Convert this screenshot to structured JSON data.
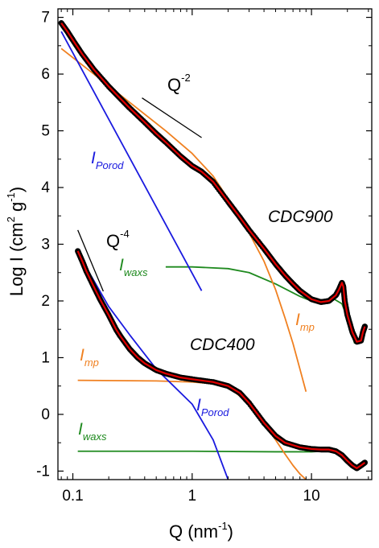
{
  "chart_data": {
    "type": "line",
    "xlabel": {
      "main": "Q (nm",
      "sup": "-1",
      "close": ")"
    },
    "ylabel": {
      "main": "Log I (cm",
      "sup1": "2",
      "mid": " g",
      "sup2": "-1",
      "close": ")"
    },
    "x_scale": "log",
    "xlim": [
      0.075,
      32
    ],
    "ylim": [
      -1.15,
      7.15
    ],
    "x_ticks": [
      0.1,
      1,
      10
    ],
    "x_tick_labels": [
      "0.1",
      "1",
      "10"
    ],
    "y_ticks": [
      -1,
      0,
      1,
      2,
      3,
      4,
      5,
      6,
      7
    ],
    "y_tick_labels": [
      "-1",
      "0",
      "1",
      "2",
      "3",
      "4",
      "5",
      "6",
      "7"
    ],
    "grid": false,
    "colors": {
      "data": "#000000",
      "fit": "#e00000",
      "porod": "#1a1adf",
      "mp": "#f08020",
      "waxs": "#1f8a1f"
    },
    "annotations": {
      "q2": {
        "base": "Q",
        "exp": "-2"
      },
      "q4": {
        "base": "Q",
        "exp": "-4"
      },
      "cdc900": "CDC900",
      "cdc400": "CDC400",
      "porod_upper": {
        "base": "I",
        "sub": "Porod"
      },
      "porod_lower": {
        "base": "I",
        "sub": "Porod"
      },
      "waxs_upper": {
        "base": "I",
        "sub": "waxs"
      },
      "waxs_lower": {
        "base": "I",
        "sub": "waxs"
      },
      "mp_upper": {
        "base": "I",
        "sub": "mp"
      },
      "mp_lower": {
        "base": "I",
        "sub": "mp"
      }
    },
    "series": [
      {
        "role": "data",
        "sample": "CDC900",
        "x": [
          0.08,
          0.09,
          0.1,
          0.12,
          0.15,
          0.2,
          0.25,
          0.3,
          0.4,
          0.5,
          0.6,
          0.8,
          1.0,
          1.2,
          1.5,
          2.0,
          2.5,
          3.0,
          4.0,
          5.0,
          6.0,
          7.0,
          8.0,
          10.0,
          12.0,
          14.0,
          16.0,
          17.0,
          18.0,
          18.5,
          19.0,
          20.0,
          22.0,
          24.0,
          26.0,
          27.0,
          28.0
        ],
        "y": [
          6.9,
          6.75,
          6.6,
          6.35,
          6.08,
          5.78,
          5.57,
          5.4,
          5.15,
          4.95,
          4.8,
          4.55,
          4.38,
          4.28,
          4.1,
          3.75,
          3.48,
          3.25,
          2.92,
          2.65,
          2.45,
          2.3,
          2.18,
          2.03,
          1.98,
          2.0,
          2.1,
          2.2,
          2.32,
          2.25,
          2.0,
          1.75,
          1.45,
          1.28,
          1.3,
          1.45,
          1.55
        ]
      },
      {
        "role": "data",
        "sample": "CDC400",
        "x": [
          0.11,
          0.12,
          0.13,
          0.15,
          0.17,
          0.2,
          0.23,
          0.25,
          0.3,
          0.35,
          0.4,
          0.5,
          0.6,
          0.8,
          1.0,
          1.5,
          2.0,
          2.5,
          3.0,
          4.0,
          5.0,
          6.0,
          8.0,
          10.0,
          12.0,
          14.0,
          16.0,
          18.0,
          20.0,
          22.0,
          24.0,
          26.0,
          28.0
        ],
        "y": [
          2.88,
          2.7,
          2.52,
          2.25,
          2.02,
          1.75,
          1.5,
          1.38,
          1.15,
          1.0,
          0.9,
          0.78,
          0.72,
          0.65,
          0.62,
          0.57,
          0.5,
          0.38,
          0.2,
          -0.15,
          -0.38,
          -0.5,
          -0.58,
          -0.61,
          -0.62,
          -0.62,
          -0.65,
          -0.72,
          -0.82,
          -0.9,
          -0.95,
          -0.9,
          -0.85
        ]
      },
      {
        "role": "fit",
        "sample": "CDC900",
        "copy_of": 0
      },
      {
        "role": "fit",
        "sample": "CDC400",
        "copy_of": 1
      },
      {
        "role": "porod",
        "sample": "CDC900",
        "x": [
          0.08,
          1.2
        ],
        "y": [
          6.75,
          2.18
        ]
      },
      {
        "role": "porod",
        "sample": "CDC400",
        "x": [
          0.11,
          0.2,
          0.3,
          0.5,
          1.0,
          1.5,
          2.0
        ],
        "y": [
          2.85,
          1.9,
          1.4,
          0.8,
          0.18,
          -0.45,
          -1.15
        ]
      },
      {
        "role": "mp",
        "sample": "CDC900",
        "x": [
          0.08,
          0.15,
          0.3,
          0.6,
          1.0,
          1.5,
          2.0,
          3.0,
          4.0,
          5.0,
          6.0,
          7.0,
          8.0,
          9.0
        ],
        "y": [
          6.45,
          6.0,
          5.5,
          5.0,
          4.6,
          4.2,
          3.8,
          3.2,
          2.7,
          2.2,
          1.7,
          1.25,
          0.8,
          0.4
        ]
      },
      {
        "role": "mp",
        "sample": "CDC400",
        "x": [
          0.11,
          0.5,
          1.0,
          1.5,
          2.0,
          3.0,
          4.0,
          5.0,
          6.0,
          7.0,
          8.0,
          9.0
        ],
        "y": [
          0.6,
          0.59,
          0.57,
          0.54,
          0.48,
          0.2,
          -0.15,
          -0.45,
          -0.7,
          -0.9,
          -1.05,
          -1.15
        ]
      },
      {
        "role": "waxs",
        "sample": "CDC900",
        "x": [
          0.6,
          1.0,
          2.0,
          3.0,
          5.0,
          8.0,
          10.0,
          12.0,
          15.0,
          18.0,
          20.0,
          23.0
        ],
        "y": [
          2.6,
          2.6,
          2.57,
          2.5,
          2.3,
          2.08,
          2.0,
          1.98,
          2.05,
          1.95,
          1.7,
          1.25
        ]
      },
      {
        "role": "waxs",
        "sample": "CDC400",
        "x": [
          0.11,
          1.0,
          5.0,
          10.0,
          14.0,
          17.0,
          20.0,
          23.0
        ],
        "y": [
          -0.65,
          -0.65,
          -0.66,
          -0.66,
          -0.64,
          -0.68,
          -0.8,
          -0.95
        ]
      },
      {
        "role": "slope_guide",
        "label": "Q-2",
        "x": [
          0.38,
          1.2
        ],
        "y": [
          5.58,
          4.88
        ]
      },
      {
        "role": "slope_guide",
        "label": "Q-4",
        "x": [
          0.11,
          0.18
        ],
        "y": [
          3.25,
          2.17
        ]
      }
    ]
  }
}
